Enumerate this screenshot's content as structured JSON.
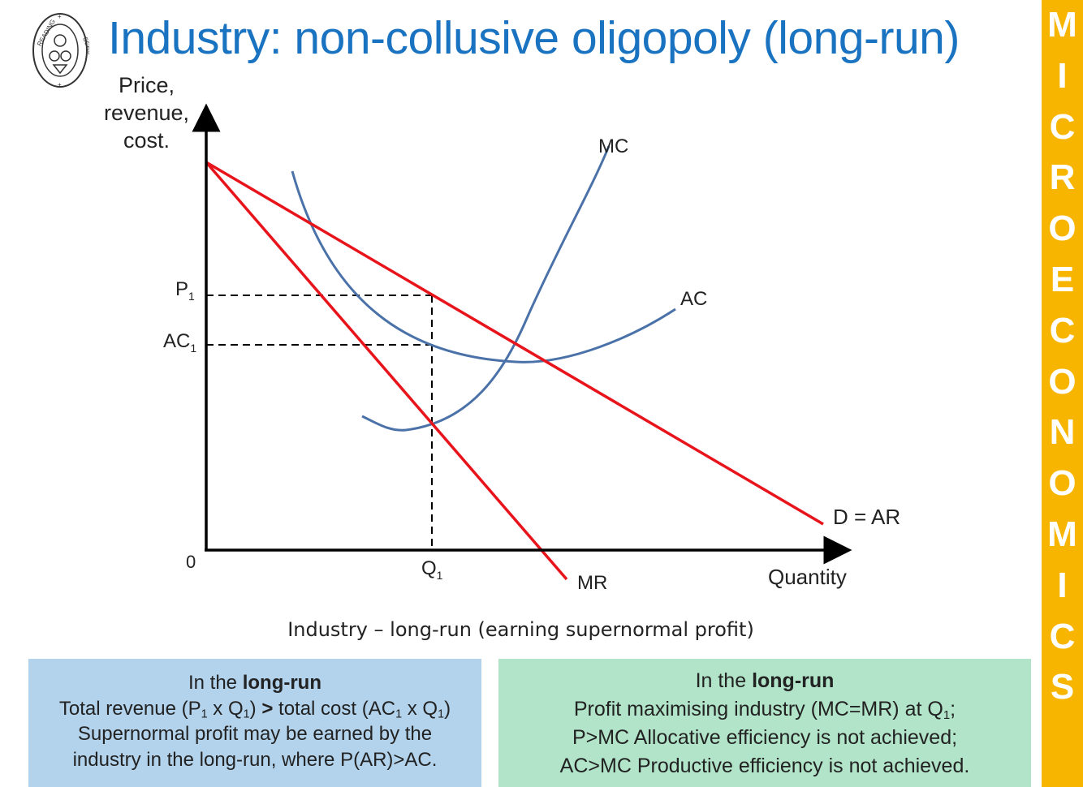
{
  "header": {
    "title": "Industry: non-collusive oligopoly (long-run)",
    "logo_text_top": "READING",
    "logo_text_right": "SCHOOL"
  },
  "sidebar": {
    "letters": [
      "M",
      "I",
      "C",
      "R",
      "O",
      "E",
      "C",
      "O",
      "N",
      "O",
      "M",
      "I",
      "C",
      "S"
    ],
    "color": "#f7b500"
  },
  "diagram": {
    "y_axis_label": "Price,\nrevenue,\ncost.",
    "x_axis_label": "Quantity",
    "origin_label": "0",
    "q1_label": {
      "main": "Q",
      "sub": "1"
    },
    "p1_label": {
      "main": "P",
      "sub": "1"
    },
    "ac1_label": {
      "main": "AC",
      "sub": "1"
    },
    "curves": {
      "mc": "MC",
      "ac": "AC",
      "demand": "D = AR",
      "mr": "MR"
    },
    "colors": {
      "revenue_lines": "#e8141c",
      "cost_curves": "#4a72a8",
      "axes": "#000000"
    },
    "caption": "Industry – long-run (earning supernormal profit)"
  },
  "boxes": {
    "left": {
      "heading_pre": "In the ",
      "heading_bold": "long-run",
      "l2_a": "Total revenue (P",
      "l2_s1": "1",
      "l2_b": " x Q",
      "l2_s2": "1",
      "l2_c": ") ",
      "l2_gt": ">",
      "l2_d": " total cost (AC",
      "l2_s3": "1",
      "l2_e": " x Q",
      "l2_s4": "1",
      "l2_f": ")",
      "l3": "Supernormal profit may be earned by the",
      "l4": "industry in the long-run, where P(AR)>AC.",
      "color": "#b3d3ec"
    },
    "right": {
      "heading_pre": "In the ",
      "heading_bold": "long-run",
      "l2_a": "Profit maximising industry (MC=MR) at Q",
      "l2_sub": "1",
      "l2_b": ";",
      "l3": "P>MC  Allocative efficiency is not achieved;",
      "l4": "AC>MC Productive efficiency is not achieved.",
      "color": "#b1e4c8"
    }
  }
}
